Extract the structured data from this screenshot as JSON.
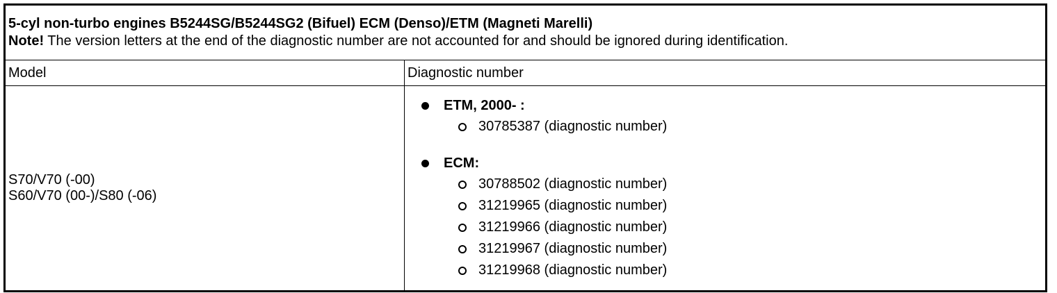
{
  "title": "5-cyl non-turbo engines B5244SG/B5244SG2 (Bifuel) ECM (Denso)/ETM (Magneti Marelli)",
  "note_label": "Note!",
  "note_text": " The version letters at the end of the diagnostic number are not accounted for and should be ignored during identification.",
  "columns": [
    "Model",
    "Diagnostic number"
  ],
  "models": [
    "S70/V70 (-00)",
    "S60/V70 (00-)/S80 (-06)"
  ],
  "groups": [
    {
      "label": "ETM, 2000- :",
      "items": [
        "30785387 (diagnostic number)"
      ]
    },
    {
      "label": "ECM:",
      "items": [
        "30788502 (diagnostic number)",
        "31219965 (diagnostic number)",
        "31219966 (diagnostic number)",
        "31219967 (diagnostic number)",
        "31219968 (diagnostic number)"
      ]
    }
  ]
}
